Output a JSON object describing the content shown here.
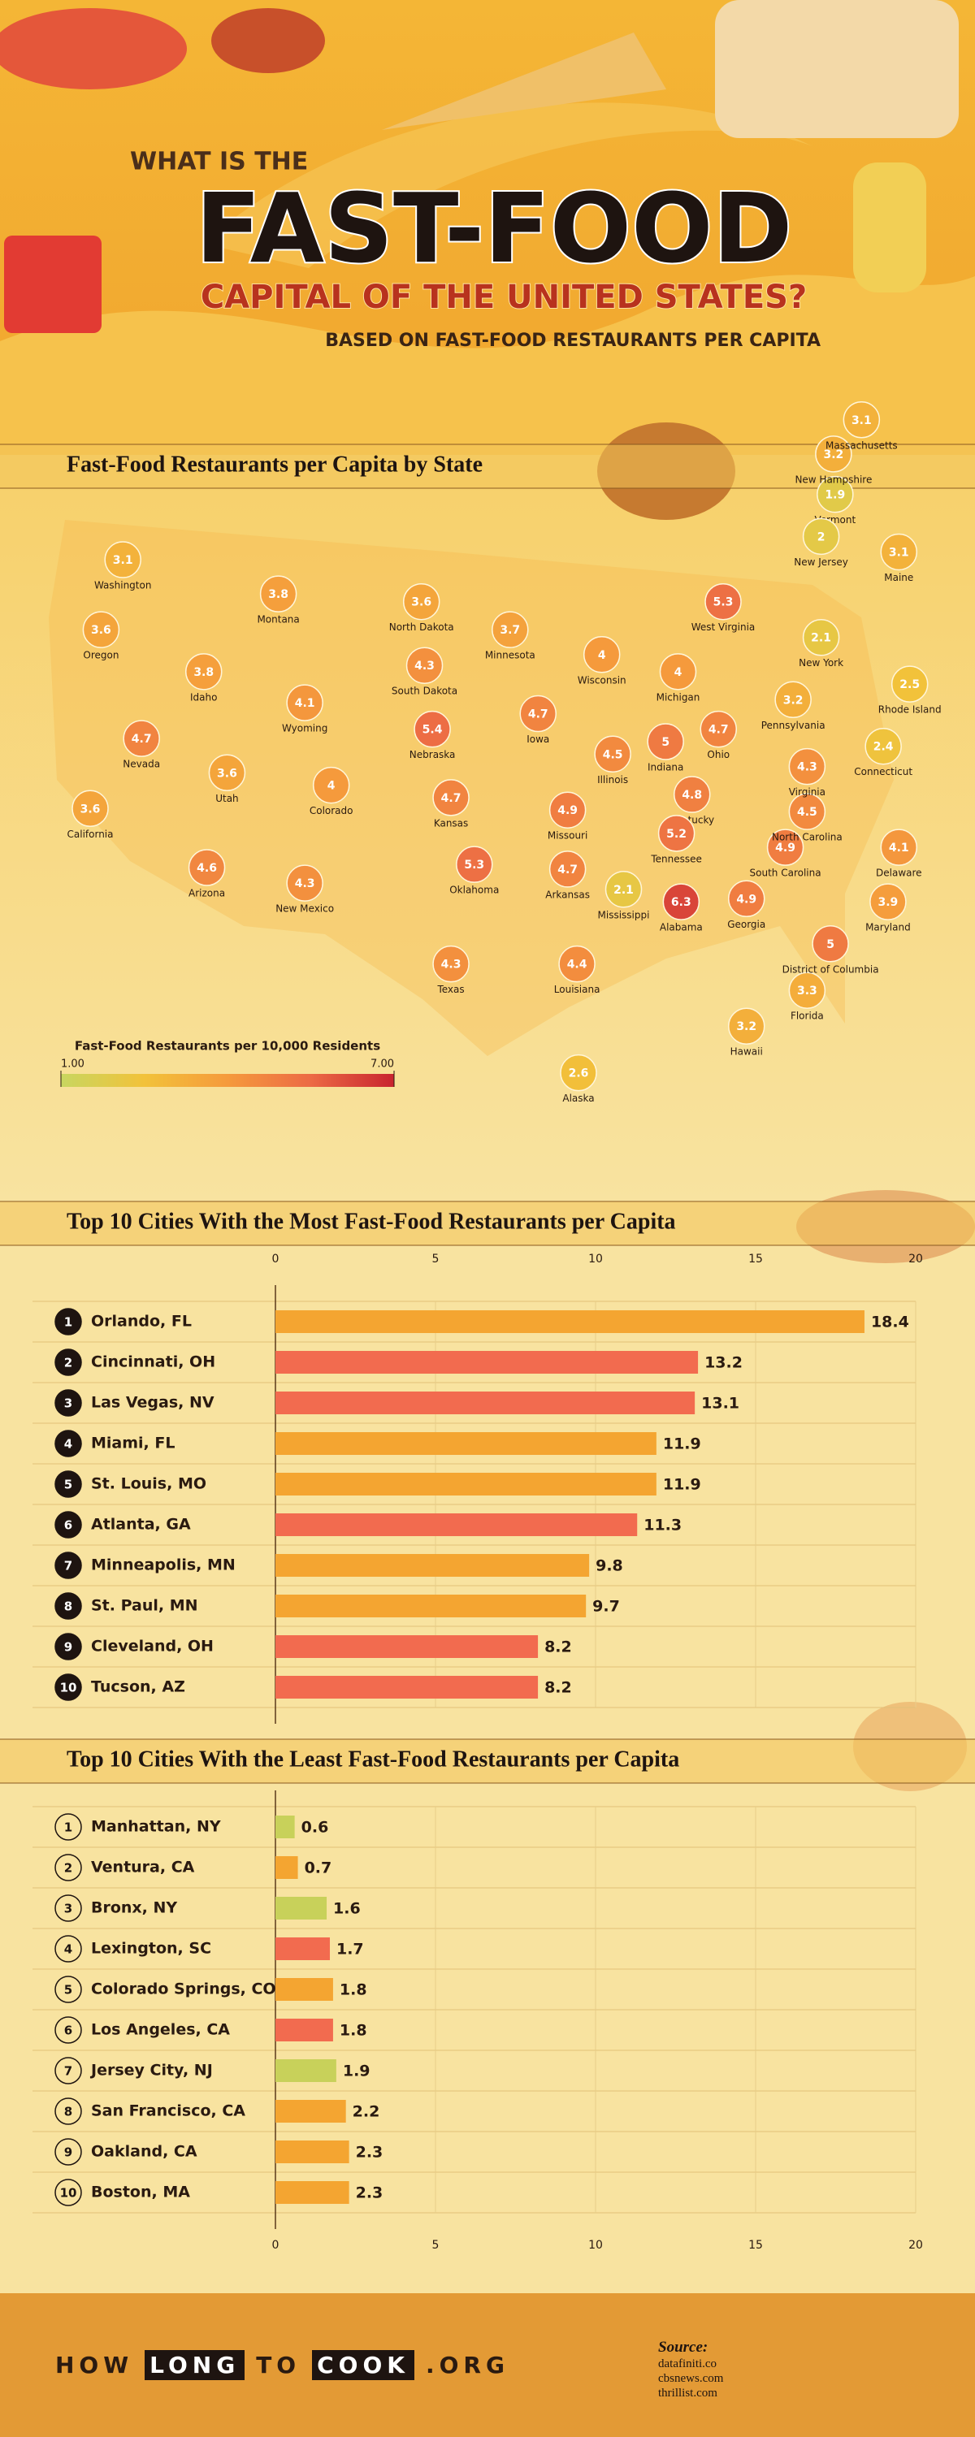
{
  "header": {
    "kicker": "WHAT IS THE",
    "title": "FAST-FOOD",
    "subtitle": "CAPITAL OF THE UNITED STATES?",
    "note": "BASED ON FAST-FOOD RESTAURANTS PER CAPITA"
  },
  "chart_data": [
    {
      "type": "choropleth",
      "title": "Fast-Food Restaurants per Capita by State",
      "categories": [
        "Washington",
        "Oregon",
        "California",
        "Nevada",
        "Idaho",
        "Montana",
        "Wyoming",
        "Utah",
        "Arizona",
        "Colorado",
        "New Mexico",
        "North Dakota",
        "South Dakota",
        "Nebraska",
        "Kansas",
        "Oklahoma",
        "Texas",
        "Minnesota",
        "Iowa",
        "Missouri",
        "Arkansas",
        "Louisiana",
        "Wisconsin",
        "Illinois",
        "Michigan",
        "Indiana",
        "Ohio",
        "Kentucky",
        "Tennessee",
        "Mississippi",
        "Alabama",
        "Georgia",
        "Florida",
        "South Carolina",
        "North Carolina",
        "Virginia",
        "West Virginia",
        "Pennsylvania",
        "New York",
        "Vermont",
        "New Hampshire",
        "Massachusetts",
        "Maine",
        "Rhode Island",
        "Connecticut",
        "New Jersey",
        "Delaware",
        "Maryland",
        "District of Columbia",
        "Hawaii",
        "Alaska"
      ],
      "values": [
        3.1,
        3.6,
        3.6,
        4.7,
        3.8,
        3.8,
        4.1,
        3.6,
        4.6,
        4,
        4.3,
        3.6,
        4.3,
        5.4,
        4.7,
        5.3,
        4.3,
        3.7,
        4.7,
        4.9,
        4.7,
        4.4,
        4,
        4.5,
        4,
        5,
        4.7,
        4.8,
        5.2,
        2.1,
        6.3,
        4.9,
        3.3,
        4.9,
        4.5,
        4.3,
        5.3,
        3.2,
        2.1,
        1.9,
        3.2,
        3.1,
        3.1,
        2.5,
        2.4,
        2,
        4.1,
        3.9,
        5,
        3.2,
        2.6
      ],
      "legend_title": "Fast-Food Restaurants per 10,000 Residents",
      "clim": [
        1,
        7
      ],
      "cticks": [
        {
          "value": 1,
          "label": "1.00"
        },
        {
          "value": 7,
          "label": "7.00"
        }
      ]
    },
    {
      "type": "bar",
      "orientation": "horizontal",
      "title": "Top 10 Cities With the Most Fast-Food Restaurants per Capita",
      "ranks": [
        1,
        2,
        3,
        4,
        5,
        6,
        7,
        8,
        9,
        10
      ],
      "rank_style": "filled",
      "categories": [
        "Orlando, FL",
        "Cincinnati, OH",
        "Las Vegas, NV",
        "Miami, FL",
        "St. Louis, MO",
        "Atlanta, GA",
        "Minneapolis, MN",
        "St. Paul, MN",
        "Cleveland, OH",
        "Tucson, AZ"
      ],
      "values": [
        18.4,
        13.2,
        13.1,
        11.9,
        11.9,
        11.3,
        9.8,
        9.7,
        8.2,
        8.2
      ],
      "colors": [
        "#f4a531",
        "#f26b4f",
        "#f26b4f",
        "#f4a531",
        "#f4a531",
        "#f26b4f",
        "#f4a531",
        "#f4a531",
        "#f26b4f",
        "#f26b4f"
      ],
      "xlim": [
        0,
        20
      ],
      "xticks": [
        0,
        5,
        10,
        15,
        20
      ],
      "axis_position": "top"
    },
    {
      "type": "bar",
      "orientation": "horizontal",
      "title": "Top 10 Cities With the Least Fast-Food Restaurants per Capita",
      "ranks": [
        1,
        2,
        3,
        4,
        5,
        6,
        7,
        8,
        9,
        10
      ],
      "rank_style": "outline",
      "categories": [
        "Manhattan, NY",
        "Ventura, CA",
        "Bronx, NY",
        "Lexington, SC",
        "Colorado Springs, CO",
        "Los Angeles, CA",
        "Jersey City, NJ",
        "San Francisco, CA",
        "Oakland, CA",
        "Boston, MA"
      ],
      "values": [
        0.6,
        0.7,
        1.6,
        1.7,
        1.8,
        1.8,
        1.9,
        2.2,
        2.3,
        2.3
      ],
      "colors": [
        "#c8d15a",
        "#f4a531",
        "#c8d15a",
        "#f26b4f",
        "#f4a531",
        "#f26b4f",
        "#c8d15a",
        "#f4a531",
        "#f4a531",
        "#f4a531"
      ],
      "xlim": [
        0,
        20
      ],
      "xticks": [
        0,
        5,
        10,
        15,
        20
      ],
      "axis_position": "bottom"
    }
  ],
  "footer": {
    "brand": [
      "HOW",
      "LONG",
      "TO",
      "COOK",
      ".ORG"
    ],
    "source_title": "Source:",
    "sources": [
      "datafiniti.co",
      "cbsnews.com",
      "thrillist.com"
    ]
  }
}
